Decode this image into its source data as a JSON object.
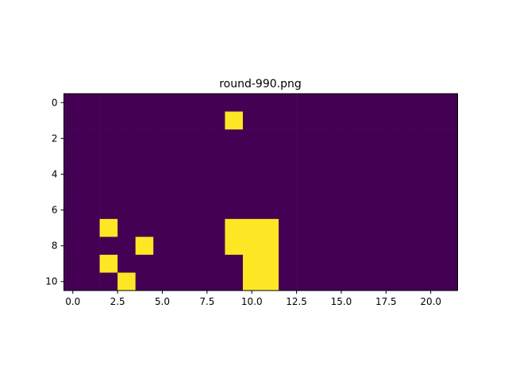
{
  "chart_data": {
    "type": "heatmap",
    "title": "round-990.png",
    "xlabel": "",
    "ylabel": "",
    "rows": 11,
    "cols": 22,
    "values": [
      [
        0,
        0,
        0,
        0,
        0,
        0,
        0,
        0,
        0,
        0,
        0,
        0,
        0,
        0,
        0,
        0,
        0,
        0,
        0,
        0,
        0,
        0
      ],
      [
        0,
        0,
        0,
        0,
        0,
        0,
        0,
        0,
        0,
        1,
        0,
        0,
        0,
        0,
        0,
        0,
        0,
        0,
        0,
        0,
        0,
        0
      ],
      [
        0,
        0,
        0,
        0,
        0,
        0,
        0,
        0,
        0,
        0,
        0,
        0,
        0,
        0,
        0,
        0,
        0,
        0,
        0,
        0,
        0,
        0
      ],
      [
        0,
        0,
        0,
        0,
        0,
        0,
        0,
        0,
        0,
        0,
        0,
        0,
        0,
        0,
        0,
        0,
        0,
        0,
        0,
        0,
        0,
        0
      ],
      [
        0,
        0,
        0,
        0,
        0,
        0,
        0,
        0,
        0,
        0,
        0,
        0,
        0,
        0,
        0,
        0,
        0,
        0,
        0,
        0,
        0,
        0
      ],
      [
        0,
        0,
        0,
        0,
        0,
        0,
        0,
        0,
        0,
        0,
        0,
        0,
        0,
        0,
        0,
        0,
        0,
        0,
        0,
        0,
        0,
        0
      ],
      [
        0,
        0,
        0,
        0,
        0,
        0,
        0,
        0,
        0,
        0,
        0,
        0,
        0,
        0,
        0,
        0,
        0,
        0,
        0,
        0,
        0,
        0
      ],
      [
        0,
        0,
        1,
        0,
        0,
        0,
        0,
        0,
        0,
        1,
        1,
        1,
        0,
        0,
        0,
        0,
        0,
        0,
        0,
        0,
        0,
        0
      ],
      [
        0,
        0,
        0,
        0,
        1,
        0,
        0,
        0,
        0,
        1,
        1,
        1,
        0,
        0,
        0,
        0,
        0,
        0,
        0,
        0,
        0,
        0
      ],
      [
        0,
        0,
        1,
        0,
        0,
        0,
        0,
        0,
        0,
        0,
        1,
        1,
        0,
        0,
        0,
        0,
        0,
        0,
        0,
        0,
        0,
        0
      ],
      [
        0,
        0,
        0,
        1,
        0,
        0,
        0,
        0,
        0,
        0,
        1,
        1,
        0,
        0,
        0,
        0,
        0,
        0,
        0,
        0,
        0,
        0
      ]
    ],
    "xlim": [
      -0.5,
      21.5
    ],
    "ylim": [
      10.5,
      -0.5
    ],
    "x_ticks": [
      0,
      2.5,
      5,
      7.5,
      10,
      12.5,
      15,
      17.5,
      20
    ],
    "x_tick_labels": [
      "0.0",
      "2.5",
      "5.0",
      "7.5",
      "10.0",
      "12.5",
      "15.0",
      "17.5",
      "20.0"
    ],
    "y_ticks": [
      0,
      2,
      4,
      6,
      8,
      10
    ],
    "y_tick_labels": [
      "0",
      "2",
      "4",
      "6",
      "8",
      "10"
    ],
    "grid": false,
    "colors": {
      "low": "#440154",
      "high": "#fde725"
    }
  }
}
